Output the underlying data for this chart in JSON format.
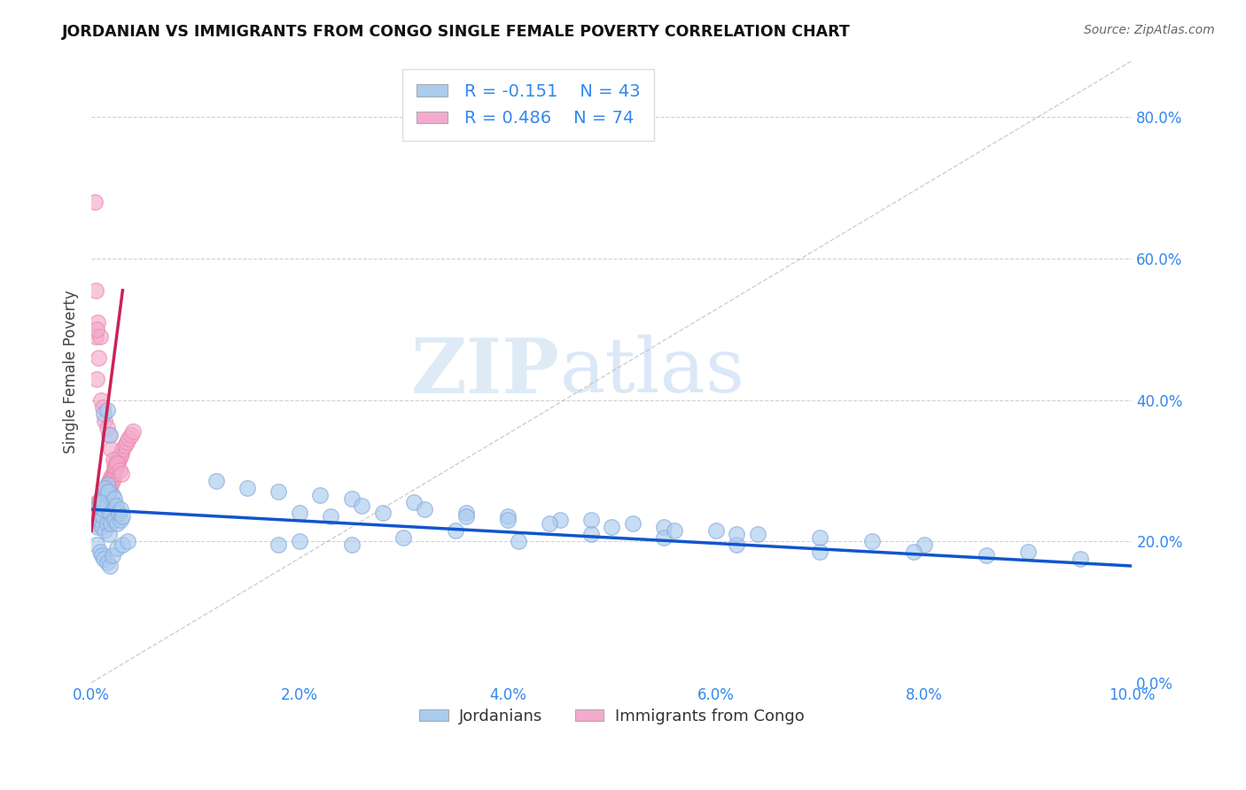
{
  "title": "JORDANIAN VS IMMIGRANTS FROM CONGO SINGLE FEMALE POVERTY CORRELATION CHART",
  "source": "Source: ZipAtlas.com",
  "ylabel": "Single Female Poverty",
  "xlim": [
    0.0,
    0.1
  ],
  "ylim": [
    0.0,
    0.88
  ],
  "xticks": [
    0.0,
    0.02,
    0.04,
    0.06,
    0.08,
    0.1
  ],
  "yticks": [
    0.0,
    0.2,
    0.4,
    0.6,
    0.8
  ],
  "jordan_color": "#aaccee",
  "congo_color": "#f4aacc",
  "jordan_edge_color": "#88aadd",
  "congo_edge_color": "#ee88aa",
  "jordan_line_color": "#1155cc",
  "congo_line_color": "#cc2255",
  "diag_color": "#bbbbbb",
  "legend_r_jordan": "R = -0.151",
  "legend_n_jordan": "N = 43",
  "legend_r_congo": "R = 0.486",
  "legend_n_congo": "N = 74",
  "legend_label_jordan": "Jordanians",
  "legend_label_congo": "Immigrants from Congo",
  "watermark_zip": "ZIP",
  "watermark_atlas": "atlas",
  "jordan_x": [
    0.0003,
    0.0005,
    0.0006,
    0.0007,
    0.0008,
    0.0009,
    0.001,
    0.001,
    0.0011,
    0.0012,
    0.0013,
    0.0014,
    0.0015,
    0.0016,
    0.0017,
    0.0018,
    0.0019,
    0.002,
    0.0022,
    0.0025,
    0.0028,
    0.0012,
    0.0015,
    0.0018,
    0.012,
    0.015,
    0.018,
    0.022,
    0.025,
    0.031,
    0.036,
    0.04,
    0.045,
    0.048,
    0.052,
    0.055,
    0.06,
    0.064,
    0.07,
    0.075,
    0.08,
    0.09,
    0.095
  ],
  "jordan_y": [
    0.225,
    0.24,
    0.22,
    0.25,
    0.23,
    0.26,
    0.22,
    0.255,
    0.235,
    0.245,
    0.215,
    0.25,
    0.225,
    0.265,
    0.21,
    0.24,
    0.225,
    0.255,
    0.23,
    0.225,
    0.23,
    0.38,
    0.385,
    0.35,
    0.285,
    0.275,
    0.27,
    0.265,
    0.26,
    0.255,
    0.24,
    0.235,
    0.23,
    0.23,
    0.225,
    0.22,
    0.215,
    0.21,
    0.205,
    0.2,
    0.195,
    0.185,
    0.175
  ],
  "jordan_x2": [
    0.0005,
    0.0008,
    0.001,
    0.0012,
    0.0015,
    0.0018,
    0.002,
    0.0025,
    0.003,
    0.0035,
    0.018,
    0.02,
    0.025,
    0.03,
    0.035,
    0.041,
    0.048,
    0.055,
    0.062,
    0.07,
    0.079,
    0.086,
    0.002,
    0.0015,
    0.0013,
    0.0016,
    0.0022,
    0.0008,
    0.0024,
    0.0026,
    0.0028,
    0.003,
    0.02,
    0.023,
    0.026,
    0.028,
    0.032,
    0.036,
    0.04,
    0.044,
    0.05,
    0.056,
    0.062
  ],
  "jordan_y2": [
    0.195,
    0.185,
    0.18,
    0.175,
    0.17,
    0.165,
    0.18,
    0.19,
    0.195,
    0.2,
    0.195,
    0.2,
    0.195,
    0.205,
    0.215,
    0.2,
    0.21,
    0.205,
    0.195,
    0.185,
    0.185,
    0.18,
    0.265,
    0.28,
    0.275,
    0.27,
    0.26,
    0.255,
    0.25,
    0.24,
    0.245,
    0.235,
    0.24,
    0.235,
    0.25,
    0.24,
    0.245,
    0.235,
    0.23,
    0.225,
    0.22,
    0.215,
    0.21
  ],
  "congo_x": [
    0.0003,
    0.0004,
    0.0005,
    0.0005,
    0.0006,
    0.0006,
    0.0007,
    0.0007,
    0.0008,
    0.0008,
    0.0008,
    0.0009,
    0.0009,
    0.001,
    0.001,
    0.001,
    0.0011,
    0.0011,
    0.0012,
    0.0012,
    0.0013,
    0.0013,
    0.0014,
    0.0014,
    0.0014,
    0.0015,
    0.0015,
    0.0016,
    0.0016,
    0.0017,
    0.0017,
    0.0018,
    0.0018,
    0.0019,
    0.0019,
    0.002,
    0.002,
    0.0021,
    0.0022,
    0.0022,
    0.0023,
    0.0023,
    0.0024,
    0.0025,
    0.0025,
    0.0026,
    0.0027,
    0.0028,
    0.0029,
    0.003,
    0.0032,
    0.0034,
    0.0036,
    0.0038,
    0.004,
    0.0005,
    0.0007,
    0.0009,
    0.0011,
    0.0013,
    0.0015,
    0.0017,
    0.0019,
    0.0021,
    0.0023,
    0.0025,
    0.0027,
    0.0029,
    0.0006,
    0.0004,
    0.0008,
    0.0005,
    0.0003,
    0.0004
  ],
  "congo_y": [
    0.23,
    0.24,
    0.245,
    0.25,
    0.235,
    0.255,
    0.24,
    0.255,
    0.225,
    0.24,
    0.255,
    0.23,
    0.25,
    0.24,
    0.26,
    0.25,
    0.24,
    0.265,
    0.25,
    0.265,
    0.235,
    0.26,
    0.25,
    0.265,
    0.27,
    0.26,
    0.27,
    0.26,
    0.28,
    0.27,
    0.285,
    0.275,
    0.285,
    0.28,
    0.29,
    0.285,
    0.295,
    0.29,
    0.295,
    0.305,
    0.3,
    0.31,
    0.305,
    0.31,
    0.315,
    0.315,
    0.32,
    0.32,
    0.325,
    0.33,
    0.335,
    0.34,
    0.345,
    0.35,
    0.355,
    0.43,
    0.46,
    0.4,
    0.39,
    0.37,
    0.36,
    0.35,
    0.33,
    0.315,
    0.305,
    0.31,
    0.3,
    0.295,
    0.51,
    0.49,
    0.49,
    0.5,
    0.68,
    0.555
  ]
}
